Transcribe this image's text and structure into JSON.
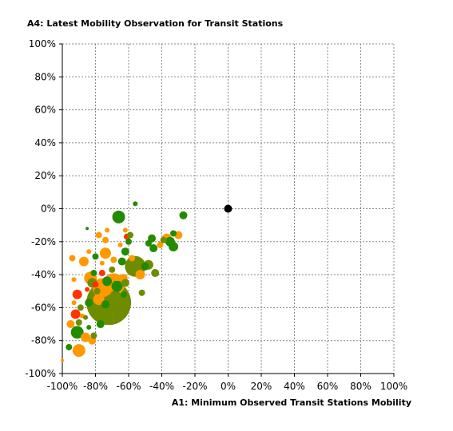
{
  "chart_data": {
    "type": "scatter",
    "title": "",
    "xlabel": "A1: Minimum Observed Transit Stations Mobility",
    "ylabel": "A4: Latest Mobility Observation for Transit Stations",
    "xlim": [
      -100,
      100
    ],
    "ylim": [
      -100,
      100
    ],
    "x_ticks": [
      "-100%",
      "-80%",
      "-60%",
      "-40%",
      "-20%",
      "0%",
      "20%",
      "40%",
      "60%",
      "80%",
      "100%"
    ],
    "y_ticks": [
      "100%",
      "80%",
      "60%",
      "40%",
      "20%",
      "0%",
      "-20%",
      "-40%",
      "-60%",
      "-80%",
      "-100%"
    ],
    "grid": true,
    "colors": {
      "orange": "#ff9900",
      "red": "#ff3300",
      "green": "#228b00",
      "olive": "#6e8c00",
      "black": "#000000"
    },
    "points": [
      {
        "x": -100,
        "y": -92,
        "size": 2,
        "color": "orange"
      },
      {
        "x": -96,
        "y": -84,
        "size": 4,
        "color": "green"
      },
      {
        "x": -95,
        "y": -70,
        "size": 5,
        "color": "orange"
      },
      {
        "x": -94,
        "y": -30,
        "size": 4,
        "color": "orange"
      },
      {
        "x": -93,
        "y": -43,
        "size": 3,
        "color": "orange"
      },
      {
        "x": -93,
        "y": -57,
        "size": 3,
        "color": "orange"
      },
      {
        "x": -92,
        "y": -64,
        "size": 6,
        "color": "red"
      },
      {
        "x": -91,
        "y": -52,
        "size": 6,
        "color": "red"
      },
      {
        "x": -91,
        "y": -75,
        "size": 8,
        "color": "green"
      },
      {
        "x": -90,
        "y": -86,
        "size": 8,
        "color": "orange"
      },
      {
        "x": -90,
        "y": -69,
        "size": 4,
        "color": "olive"
      },
      {
        "x": -89,
        "y": -60,
        "size": 4,
        "color": "olive"
      },
      {
        "x": -88,
        "y": -65,
        "size": 3,
        "color": "orange"
      },
      {
        "x": -87,
        "y": -32,
        "size": 6,
        "color": "orange"
      },
      {
        "x": -86,
        "y": -78,
        "size": 6,
        "color": "orange"
      },
      {
        "x": -86,
        "y": -66,
        "size": 3,
        "color": "olive"
      },
      {
        "x": -85,
        "y": -49,
        "size": 3,
        "color": "red"
      },
      {
        "x": -85,
        "y": -12,
        "size": 2,
        "color": "green"
      },
      {
        "x": -84,
        "y": -26,
        "size": 3,
        "color": "orange"
      },
      {
        "x": -84,
        "y": -57,
        "size": 5,
        "color": "green"
      },
      {
        "x": -84,
        "y": -72,
        "size": 3,
        "color": "green"
      },
      {
        "x": -83,
        "y": -42,
        "size": 8,
        "color": "orange"
      },
      {
        "x": -82,
        "y": -80,
        "size": 5,
        "color": "orange"
      },
      {
        "x": -82,
        "y": -45,
        "size": 6,
        "color": "olive"
      },
      {
        "x": -81,
        "y": -39,
        "size": 4,
        "color": "green"
      },
      {
        "x": -81,
        "y": -77,
        "size": 4,
        "color": "olive"
      },
      {
        "x": -80,
        "y": -29,
        "size": 4,
        "color": "green"
      },
      {
        "x": -80,
        "y": -46,
        "size": 4,
        "color": "red"
      },
      {
        "x": -79,
        "y": -50,
        "size": 4,
        "color": "olive"
      },
      {
        "x": -78,
        "y": -16,
        "size": 4,
        "color": "orange"
      },
      {
        "x": -78,
        "y": -55,
        "size": 7,
        "color": "orange"
      },
      {
        "x": -77,
        "y": -70,
        "size": 5,
        "color": "green"
      },
      {
        "x": -76,
        "y": -39,
        "size": 4,
        "color": "red"
      },
      {
        "x": -76,
        "y": -33,
        "size": 3,
        "color": "orange"
      },
      {
        "x": -76,
        "y": -48,
        "size": 12,
        "color": "orange"
      },
      {
        "x": -75,
        "y": -61,
        "size": 5,
        "color": "olive"
      },
      {
        "x": -74,
        "y": -27,
        "size": 7,
        "color": "orange"
      },
      {
        "x": -74,
        "y": -58,
        "size": 5,
        "color": "green"
      },
      {
        "x": -74,
        "y": -19,
        "size": 4,
        "color": "orange"
      },
      {
        "x": -73,
        "y": -44,
        "size": 6,
        "color": "green"
      },
      {
        "x": -73,
        "y": -13,
        "size": 3,
        "color": "orange"
      },
      {
        "x": -72,
        "y": -57,
        "size": 28,
        "color": "olive"
      },
      {
        "x": -70,
        "y": -37,
        "size": 4,
        "color": "olive"
      },
      {
        "x": -69,
        "y": -31,
        "size": 4,
        "color": "orange"
      },
      {
        "x": -69,
        "y": -46,
        "size": 14,
        "color": "orange"
      },
      {
        "x": -68,
        "y": -53,
        "size": 7,
        "color": "olive"
      },
      {
        "x": -67,
        "y": -42,
        "size": 4,
        "color": "orange"
      },
      {
        "x": -67,
        "y": -47,
        "size": 7,
        "color": "green"
      },
      {
        "x": -66,
        "y": -5,
        "size": 8,
        "color": "green"
      },
      {
        "x": -65,
        "y": -22,
        "size": 3,
        "color": "orange"
      },
      {
        "x": -64,
        "y": -32,
        "size": 5,
        "color": "green"
      },
      {
        "x": -63,
        "y": -42,
        "size": 5,
        "color": "orange"
      },
      {
        "x": -63,
        "y": -52,
        "size": 4,
        "color": "green"
      },
      {
        "x": -62,
        "y": -13,
        "size": 3,
        "color": "orange"
      },
      {
        "x": -62,
        "y": -26,
        "size": 5,
        "color": "green"
      },
      {
        "x": -62,
        "y": -45,
        "size": 5,
        "color": "olive"
      },
      {
        "x": -61,
        "y": -17,
        "size": 4,
        "color": "red"
      },
      {
        "x": -60,
        "y": -20,
        "size": 4,
        "color": "green"
      },
      {
        "x": -59,
        "y": -16,
        "size": 4,
        "color": "olive"
      },
      {
        "x": -58,
        "y": -30,
        "size": 4,
        "color": "orange"
      },
      {
        "x": -56,
        "y": -35,
        "size": 13,
        "color": "olive"
      },
      {
        "x": -56,
        "y": 3,
        "size": 3,
        "color": "green"
      },
      {
        "x": -53,
        "y": -40,
        "size": 6,
        "color": "orange"
      },
      {
        "x": -52,
        "y": -51,
        "size": 4,
        "color": "olive"
      },
      {
        "x": -50,
        "y": -35,
        "size": 5,
        "color": "green"
      },
      {
        "x": -48,
        "y": -34,
        "size": 6,
        "color": "olive"
      },
      {
        "x": -48,
        "y": -21,
        "size": 4,
        "color": "green"
      },
      {
        "x": -46,
        "y": -18,
        "size": 5,
        "color": "green"
      },
      {
        "x": -45,
        "y": -24,
        "size": 5,
        "color": "green"
      },
      {
        "x": -44,
        "y": -39,
        "size": 5,
        "color": "olive"
      },
      {
        "x": -41,
        "y": -22,
        "size": 4,
        "color": "orange"
      },
      {
        "x": -39,
        "y": -19,
        "size": 4,
        "color": "olive"
      },
      {
        "x": -37,
        "y": -18,
        "size": 6,
        "color": "orange"
      },
      {
        "x": -35,
        "y": -20,
        "size": 6,
        "color": "green"
      },
      {
        "x": -33,
        "y": -23,
        "size": 6,
        "color": "green"
      },
      {
        "x": -33,
        "y": -15,
        "size": 4,
        "color": "green"
      },
      {
        "x": -30,
        "y": -16,
        "size": 5,
        "color": "orange"
      },
      {
        "x": -27,
        "y": -4,
        "size": 5,
        "color": "green"
      },
      {
        "x": 0,
        "y": 0,
        "size": 5,
        "color": "black"
      }
    ]
  }
}
